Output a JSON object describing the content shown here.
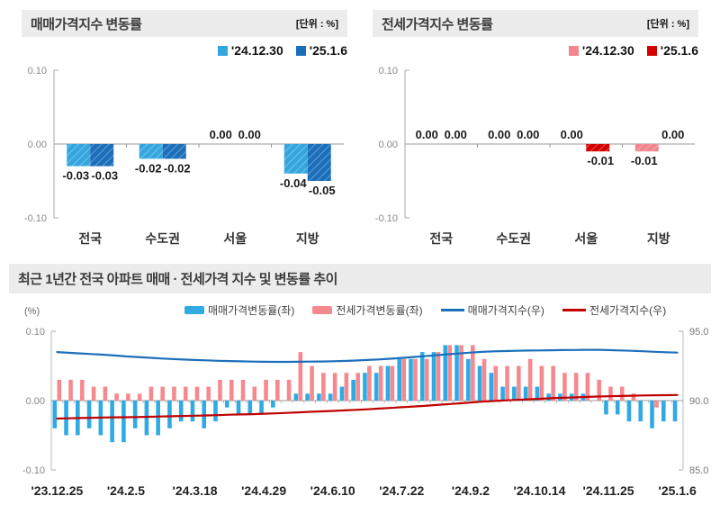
{
  "sale_panel": {
    "title": "매매가격지수 변동률",
    "unit": "[단위 : %]",
    "legend": [
      {
        "label": "'24.12.30"
      },
      {
        "label": "'25.1.6"
      }
    ]
  },
  "jeonse_panel": {
    "title": "전세가격지수 변동률",
    "unit": "[단위 : %]",
    "legend": [
      {
        "label": "'24.12.30"
      },
      {
        "label": "'25.1.6"
      }
    ]
  },
  "trend_panel": {
    "title": "최근 1년간 전국 아파트 매매 · 전세가격 지수 및 변동률 추이",
    "left_axis_unit": "(%)",
    "legend": [
      {
        "label": "매매가격변동률(좌)",
        "type": "bar",
        "color": "#2FAAE3"
      },
      {
        "label": "전세가격변동률(좌)",
        "type": "bar",
        "color": "#F58990"
      },
      {
        "label": "매매가격지수(우)",
        "type": "line",
        "color": "#1C6FBA"
      },
      {
        "label": "전세가격지수(우)",
        "type": "line",
        "color": "#C00000"
      }
    ]
  },
  "colors": {
    "light_blue": "#33A6DF",
    "dark_blue": "#1B6FBA",
    "light_pink": "#F2858E",
    "dark_red": "#D40000",
    "bar_blue": "#2FAAE3",
    "bar_pink": "#F58990",
    "line_blue": "#1C6FBA",
    "line_red": "#C00000",
    "header_bg": "#ECECEC",
    "axis_gray": "#AAAAAA",
    "tick_text": "#888888"
  },
  "chart_data": [
    {
      "id": "sale_change_bar",
      "type": "bar",
      "title": "매매가격지수 변동률",
      "unit": "%",
      "categories": [
        "전국",
        "수도권",
        "서울",
        "지방"
      ],
      "series": [
        {
          "name": "'24.12.30",
          "color": "#33A6DF",
          "values": [
            -0.03,
            -0.02,
            0.0,
            -0.04
          ]
        },
        {
          "name": "'25.1.6",
          "color": "#1B6FBA",
          "values": [
            -0.03,
            -0.02,
            0.0,
            -0.05
          ]
        }
      ],
      "ylim": [
        -0.1,
        0.1
      ],
      "yticks": [
        0.1,
        0.0,
        -0.1
      ]
    },
    {
      "id": "jeonse_change_bar",
      "type": "bar",
      "title": "전세가격지수 변동률",
      "unit": "%",
      "categories": [
        "전국",
        "수도권",
        "서울",
        "지방"
      ],
      "series": [
        {
          "name": "'24.12.30",
          "color": "#F2858E",
          "values": [
            0.0,
            0.0,
            0.0,
            -0.01
          ]
        },
        {
          "name": "'25.1.6",
          "color": "#D40000",
          "values": [
            0.0,
            0.0,
            -0.01,
            0.0
          ]
        }
      ],
      "ylim": [
        -0.1,
        0.1
      ],
      "yticks": [
        0.1,
        0.0,
        -0.1
      ]
    },
    {
      "id": "trend_combo",
      "type": "line+bar",
      "title": "최근 1년간 전국 아파트 매매 · 전세가격 지수 및 변동률 추이",
      "x_labels": [
        "'23.12.25",
        "'24.2.5",
        "'24.3.18",
        "'24.4.29",
        "'24.6.10",
        "'24.7.22",
        "'24.9.2",
        "'24.10.14",
        "'24.11.25",
        "'25.1.6"
      ],
      "x_label_every": 6,
      "weeks": 55,
      "left_ylim": [
        -0.1,
        0.1
      ],
      "left_yticks": [
        0.1,
        0.0,
        -0.1
      ],
      "right_ylim": [
        85.0,
        95.0
      ],
      "right_yticks": [
        95.0,
        90.0,
        85.0
      ],
      "series": [
        {
          "name": "매매가격변동률(좌)",
          "type": "bar",
          "axis": "left",
          "color": "#2FAAE3",
          "values": [
            -0.04,
            -0.05,
            -0.05,
            -0.04,
            -0.05,
            -0.06,
            -0.06,
            -0.04,
            -0.05,
            -0.05,
            -0.04,
            -0.03,
            -0.03,
            -0.04,
            -0.03,
            -0.01,
            -0.02,
            -0.02,
            -0.02,
            -0.01,
            0.0,
            0.01,
            0.01,
            0.01,
            0.01,
            0.02,
            0.03,
            0.04,
            0.04,
            0.05,
            0.06,
            0.06,
            0.07,
            0.07,
            0.08,
            0.08,
            0.06,
            0.05,
            0.04,
            0.02,
            0.02,
            0.02,
            0.02,
            0.01,
            0.01,
            0.01,
            0.01,
            0.0,
            -0.02,
            -0.02,
            -0.03,
            -0.03,
            -0.04,
            -0.03,
            -0.03
          ]
        },
        {
          "name": "전세가격변동률(좌)",
          "type": "bar",
          "axis": "left",
          "color": "#F58990",
          "values": [
            0.03,
            0.03,
            0.03,
            0.02,
            0.02,
            0.01,
            0.01,
            0.01,
            0.02,
            0.02,
            0.02,
            0.02,
            0.02,
            0.02,
            0.03,
            0.03,
            0.03,
            0.02,
            0.03,
            0.03,
            0.03,
            0.07,
            0.05,
            0.04,
            0.04,
            0.04,
            0.04,
            0.05,
            0.05,
            0.05,
            0.06,
            0.06,
            0.06,
            0.07,
            0.08,
            0.08,
            0.08,
            0.06,
            0.05,
            0.05,
            0.05,
            0.06,
            0.05,
            0.05,
            0.04,
            0.04,
            0.04,
            0.03,
            0.02,
            0.02,
            0.01,
            0.0,
            -0.01,
            0.0,
            0.0
          ]
        },
        {
          "name": "매매가격지수(우)",
          "type": "line",
          "axis": "right",
          "color": "#1C6FBA",
          "values": [
            93.5,
            93.45,
            93.4,
            93.36,
            93.31,
            93.25,
            93.19,
            93.14,
            93.09,
            93.04,
            93.0,
            92.96,
            92.93,
            92.9,
            92.87,
            92.85,
            92.83,
            92.81,
            92.8,
            92.79,
            92.79,
            92.8,
            92.81,
            92.82,
            92.84,
            92.86,
            92.89,
            92.93,
            92.97,
            93.02,
            93.08,
            93.14,
            93.2,
            93.27,
            93.34,
            93.4,
            93.46,
            93.51,
            93.55,
            93.57,
            93.59,
            93.61,
            93.62,
            93.63,
            93.64,
            93.65,
            93.66,
            93.66,
            93.64,
            93.62,
            93.59,
            93.56,
            93.52,
            93.49,
            93.46
          ]
        },
        {
          "name": "전세가격지수(우)",
          "type": "line",
          "axis": "right",
          "color": "#C00000",
          "values": [
            88.7,
            88.72,
            88.74,
            88.76,
            88.78,
            88.79,
            88.8,
            88.81,
            88.83,
            88.85,
            88.87,
            88.89,
            88.91,
            88.93,
            88.95,
            88.98,
            89.0,
            89.02,
            89.05,
            89.08,
            89.11,
            89.15,
            89.19,
            89.22,
            89.25,
            89.29,
            89.33,
            89.37,
            89.42,
            89.47,
            89.52,
            89.57,
            89.62,
            89.68,
            89.74,
            89.8,
            89.86,
            89.92,
            89.97,
            90.01,
            90.05,
            90.09,
            90.13,
            90.17,
            90.2,
            90.23,
            90.26,
            90.29,
            90.31,
            90.33,
            90.35,
            90.37,
            90.38,
            90.39,
            90.4
          ]
        }
      ]
    }
  ]
}
